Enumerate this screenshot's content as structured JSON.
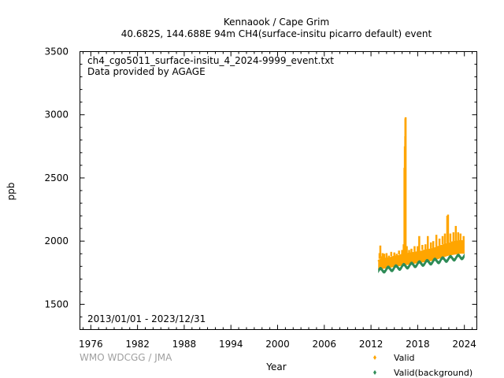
{
  "header": {
    "title": "Kennaook / Cape Grim",
    "subtitle": "40.682S, 144.688E 94m    CH4(surface-insitu picarro default) event"
  },
  "annotations": {
    "filename": "ch4_cgo5011_surface-insitu_4_2024-9999_event.txt",
    "provider": "Data provided by AGAGE",
    "date_range": "2013/01/01 - 2023/12/31",
    "credit": "WMO WDCGG / JMA"
  },
  "colors": {
    "valid": "#FFA500",
    "background": "#2E8B57",
    "credit": "#A0A0A0"
  },
  "chart_data": {
    "type": "scatter",
    "xlabel": "Year",
    "ylabel": "ppb",
    "xlim": [
      1974.6,
      2025.6
    ],
    "ylim": [
      1300,
      3500
    ],
    "xticks": [
      1976,
      1982,
      1988,
      1994,
      2000,
      2006,
      2012,
      2018,
      2024
    ],
    "yticks": [
      1500,
      2000,
      2500,
      3000,
      3500
    ],
    "x_minor_step": 1,
    "y_minor_step": 100,
    "legend_position": "bottom-right",
    "series": [
      {
        "name": "Valid",
        "marker": "diamond",
        "points": [
          [
            2013.0,
            1840
          ],
          [
            2013.1,
            1905
          ],
          [
            2013.2,
            1965
          ],
          [
            2013.3,
            1880
          ],
          [
            2013.5,
            1905
          ],
          [
            2013.7,
            1900
          ],
          [
            2014.0,
            1905
          ],
          [
            2014.3,
            1885
          ],
          [
            2014.6,
            1915
          ],
          [
            2015.0,
            1910
          ],
          [
            2015.3,
            1900
          ],
          [
            2015.6,
            1925
          ],
          [
            2016.0,
            1930
          ],
          [
            2016.2,
            1975
          ],
          [
            2016.3,
            2580
          ],
          [
            2016.35,
            2750
          ],
          [
            2016.4,
            2830
          ],
          [
            2016.42,
            2970
          ],
          [
            2016.45,
            2980
          ],
          [
            2016.6,
            1960
          ],
          [
            2016.9,
            1930
          ],
          [
            2017.2,
            1940
          ],
          [
            2017.6,
            1960
          ],
          [
            2018.0,
            1960
          ],
          [
            2018.2,
            2040
          ],
          [
            2018.6,
            1970
          ],
          [
            2019.0,
            1975
          ],
          [
            2019.3,
            2040
          ],
          [
            2019.7,
            1990
          ],
          [
            2020.0,
            2000
          ],
          [
            2020.4,
            2050
          ],
          [
            2020.8,
            2020
          ],
          [
            2021.2,
            2040
          ],
          [
            2021.5,
            2060
          ],
          [
            2021.8,
            2200
          ],
          [
            2021.9,
            2210
          ],
          [
            2022.2,
            2060
          ],
          [
            2022.6,
            2070
          ],
          [
            2022.9,
            2120
          ],
          [
            2023.2,
            2070
          ],
          [
            2023.5,
            2060
          ],
          [
            2023.9,
            2040
          ]
        ],
        "band": [
          [
            2013.0,
            1780,
            1850
          ],
          [
            2013.5,
            1785,
            1860
          ],
          [
            2014.0,
            1790,
            1865
          ],
          [
            2014.5,
            1795,
            1870
          ],
          [
            2015.0,
            1800,
            1880
          ],
          [
            2015.5,
            1805,
            1885
          ],
          [
            2016.0,
            1810,
            1895
          ],
          [
            2016.5,
            1815,
            1900
          ],
          [
            2017.0,
            1820,
            1905
          ],
          [
            2017.5,
            1825,
            1910
          ],
          [
            2018.0,
            1830,
            1915
          ],
          [
            2018.5,
            1835,
            1920
          ],
          [
            2019.0,
            1840,
            1930
          ],
          [
            2019.5,
            1845,
            1935
          ],
          [
            2020.0,
            1850,
            1940
          ],
          [
            2020.5,
            1860,
            1955
          ],
          [
            2021.0,
            1870,
            1965
          ],
          [
            2021.5,
            1880,
            1975
          ],
          [
            2022.0,
            1890,
            1985
          ],
          [
            2022.5,
            1895,
            1995
          ],
          [
            2023.0,
            1900,
            2000
          ],
          [
            2023.5,
            1905,
            2005
          ],
          [
            2023.95,
            1905,
            2000
          ]
        ]
      },
      {
        "name": "Valid(background)",
        "marker": "diamond",
        "start": 2013.0,
        "end": 2023.95,
        "baseline_start": 1765,
        "trend_ppb_per_year": 10.5,
        "seasonal_amplitude": 16,
        "band_width": 16
      }
    ]
  }
}
